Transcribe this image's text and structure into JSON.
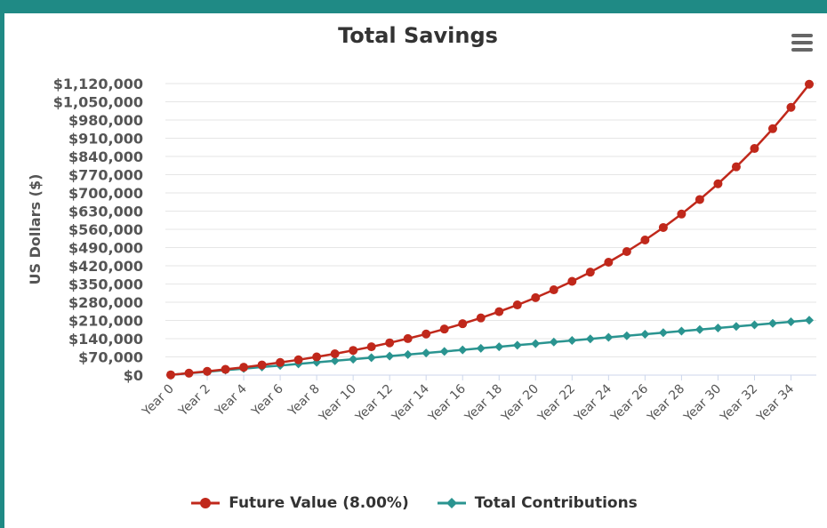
{
  "chart_data": {
    "type": "line",
    "title": "Total Savings",
    "ylabel": "US Dollars ($)",
    "xlabel": "",
    "ylim": [
      0,
      1120000
    ],
    "yticks": [
      "$0",
      "$70,000",
      "$140,000",
      "$210,000",
      "$280,000",
      "$350,000",
      "$420,000",
      "$490,000",
      "$560,000",
      "$630,000",
      "$700,000",
      "$770,000",
      "$840,000",
      "$910,000",
      "$980,000",
      "$1,050,000",
      "$1,120,000"
    ],
    "categories": [
      "Year 0",
      "Year 1",
      "Year 2",
      "Year 3",
      "Year 4",
      "Year 5",
      "Year 6",
      "Year 7",
      "Year 8",
      "Year 9",
      "Year 10",
      "Year 11",
      "Year 12",
      "Year 13",
      "Year 14",
      "Year 15",
      "Year 16",
      "Year 17",
      "Year 18",
      "Year 19",
      "Year 20",
      "Year 21",
      "Year 22",
      "Year 23",
      "Year 24",
      "Year 25",
      "Year 26",
      "Year 27",
      "Year 28",
      "Year 29",
      "Year 30",
      "Year 31",
      "Year 32",
      "Year 33",
      "Year 34",
      "Year 35"
    ],
    "xtick_labels": [
      "Year 0",
      "Year 2",
      "Year 4",
      "Year 6",
      "Year 8",
      "Year 10",
      "Year 12",
      "Year 14",
      "Year 16",
      "Year 18",
      "Year 20",
      "Year 22",
      "Year 24",
      "Year 26",
      "Year 28",
      "Year 30",
      "Year 32",
      "Year 34"
    ],
    "series": [
      {
        "name": "Future Value (8.00%)",
        "color": "#c0281b",
        "marker": "circle",
        "values": [
          1000,
          7480,
          14480,
          22040,
          30200,
          39020,
          48540,
          58820,
          69930,
          81920,
          94870,
          108860,
          123970,
          140290,
          157910,
          176940,
          197500,
          219700,
          243670,
          269560,
          297520,
          327710,
          360320,
          395540,
          433580,
          474660,
          519030,
          566940,
          618700,
          674590,
          734950,
          800140,
          870550,
          946590,
          1028710,
          1117400
        ]
      },
      {
        "name": "Total Contributions",
        "color": "#2a9490",
        "marker": "diamond",
        "values": [
          1000,
          7000,
          13000,
          19000,
          25000,
          31000,
          37000,
          43000,
          49000,
          55000,
          61000,
          67000,
          73000,
          79000,
          85000,
          91000,
          97000,
          103000,
          109000,
          115000,
          121000,
          127000,
          133000,
          139000,
          145000,
          151000,
          157000,
          163000,
          169000,
          175000,
          181000,
          187000,
          193000,
          199000,
          205000,
          211000
        ]
      }
    ],
    "legend_position": "bottom-center",
    "grid": true
  },
  "menu_icon": "hamburger-menu-icon"
}
